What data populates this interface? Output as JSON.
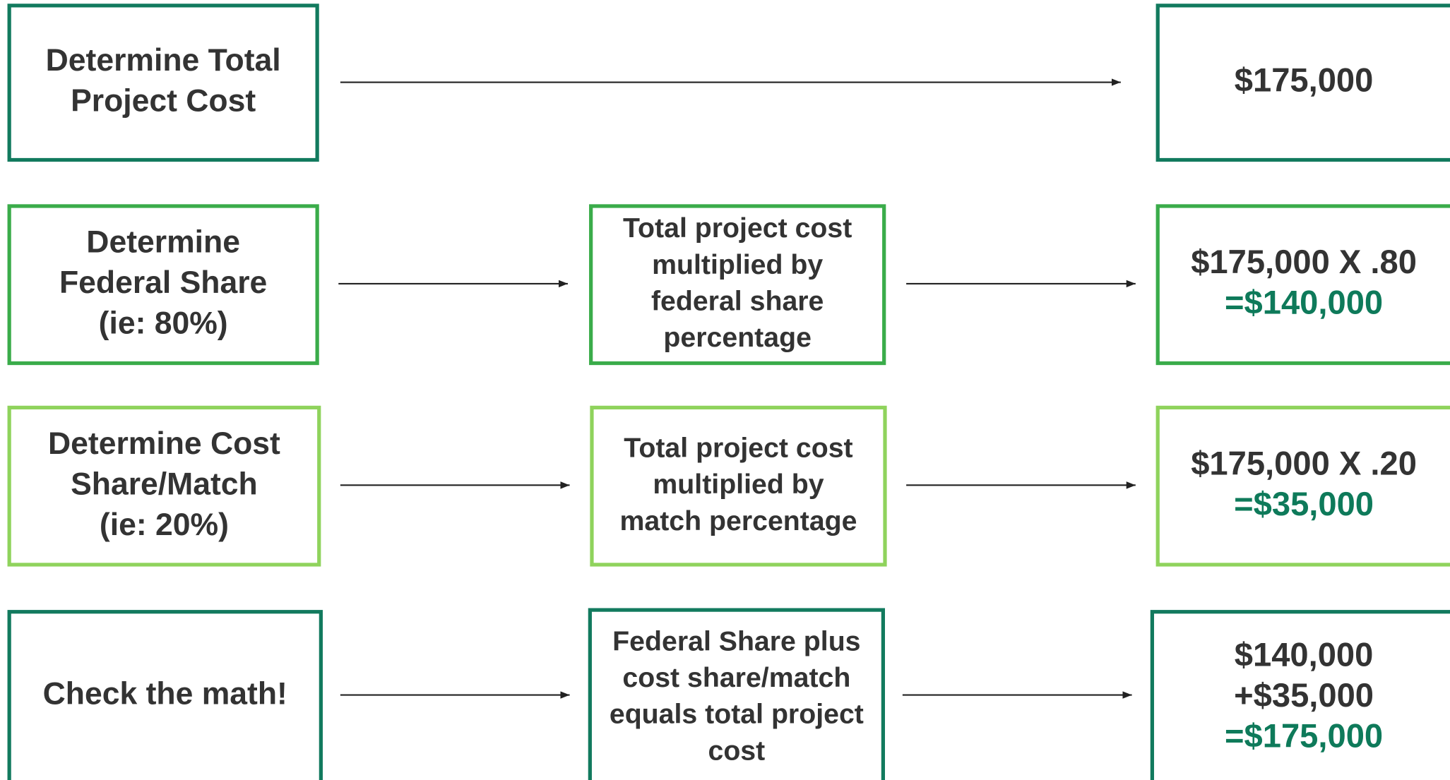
{
  "rows": [
    {
      "step": [
        "Determine Total",
        "Project Cost"
      ],
      "result": [
        "$175,000"
      ]
    },
    {
      "step": [
        "Determine",
        "Federal Share",
        "(ie: 80%)"
      ],
      "formula": [
        "Total project cost",
        "multiplied by",
        "federal share",
        "percentage"
      ],
      "result": [
        "$175,000 X .80"
      ],
      "total": "=$140,000"
    },
    {
      "step": [
        "Determine Cost",
        "Share/Match",
        "(ie: 20%)"
      ],
      "formula": [
        "Total project cost",
        "multiplied by",
        "match percentage"
      ],
      "result": [
        "$175,000 X .20"
      ],
      "total": "=$35,000"
    },
    {
      "step": [
        "Check the math!"
      ],
      "formula": [
        "Federal Share plus",
        "cost share/match",
        "equals total project",
        "cost"
      ],
      "result": [
        "$140,000",
        "+$35,000"
      ],
      "total": "=$175,000"
    }
  ]
}
